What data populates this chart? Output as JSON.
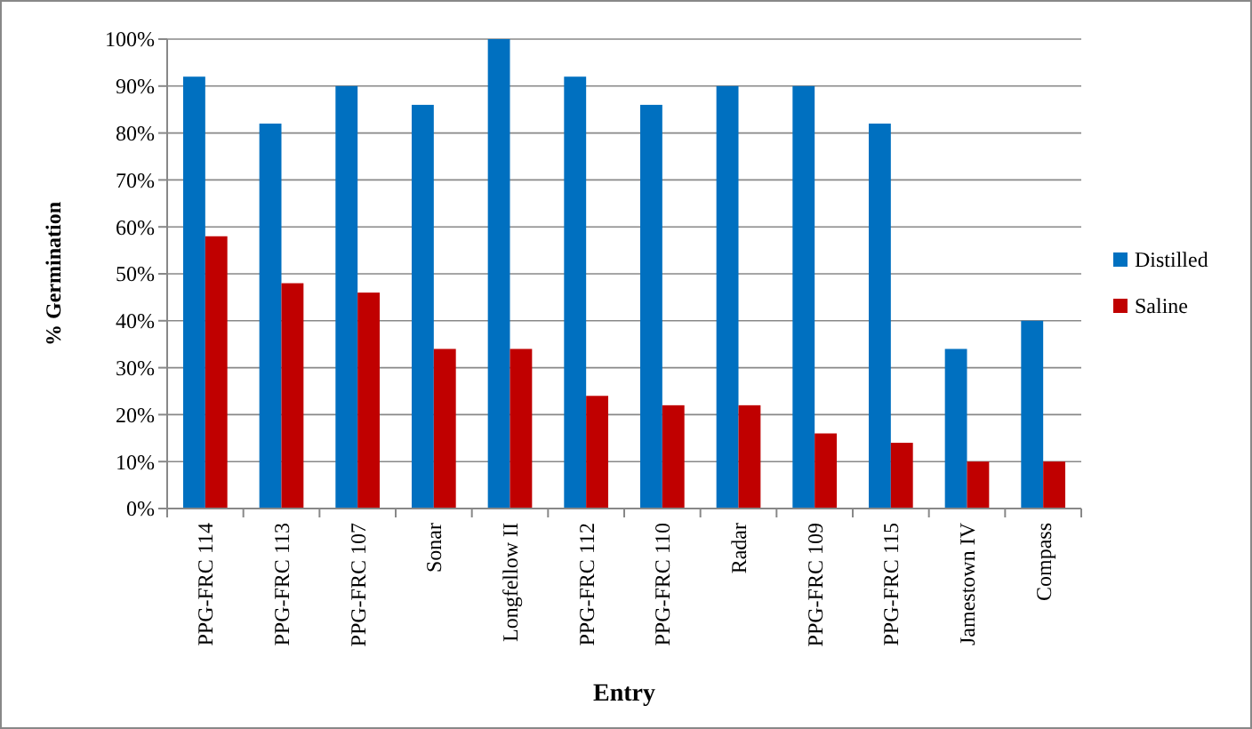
{
  "chart_data": {
    "type": "bar",
    "xlabel": "Entry",
    "ylabel": "% Germination",
    "categories": [
      "PPG-FRC 114",
      "PPG-FRC 113",
      "PPG-FRC 107",
      "Sonar",
      "Longfellow II",
      "PPG-FRC 112",
      "PPG-FRC 110",
      "Radar",
      "PPG-FRC 109",
      "PPG-FRC 115",
      "Jamestown IV",
      "Compass"
    ],
    "series": [
      {
        "name": "Distilled",
        "color": "#0070c0",
        "values": [
          92,
          82,
          90,
          86,
          100,
          92,
          86,
          90,
          90,
          82,
          34,
          40
        ]
      },
      {
        "name": "Saline",
        "color": "#c00000",
        "values": [
          58,
          48,
          46,
          34,
          34,
          24,
          22,
          22,
          16,
          14,
          10,
          10
        ]
      }
    ],
    "ylim": [
      0,
      100
    ],
    "yticks": [
      {
        "value": 0,
        "label": "0%"
      },
      {
        "value": 10,
        "label": "10%"
      },
      {
        "value": 20,
        "label": "20%"
      },
      {
        "value": 30,
        "label": "30%"
      },
      {
        "value": 40,
        "label": "40%"
      },
      {
        "value": 50,
        "label": "50%"
      },
      {
        "value": 60,
        "label": "60%"
      },
      {
        "value": 70,
        "label": "70%"
      },
      {
        "value": 80,
        "label": "80%"
      },
      {
        "value": 90,
        "label": "90%"
      },
      {
        "value": 100,
        "label": "100%"
      }
    ],
    "grid": "y",
    "legend": "right"
  }
}
